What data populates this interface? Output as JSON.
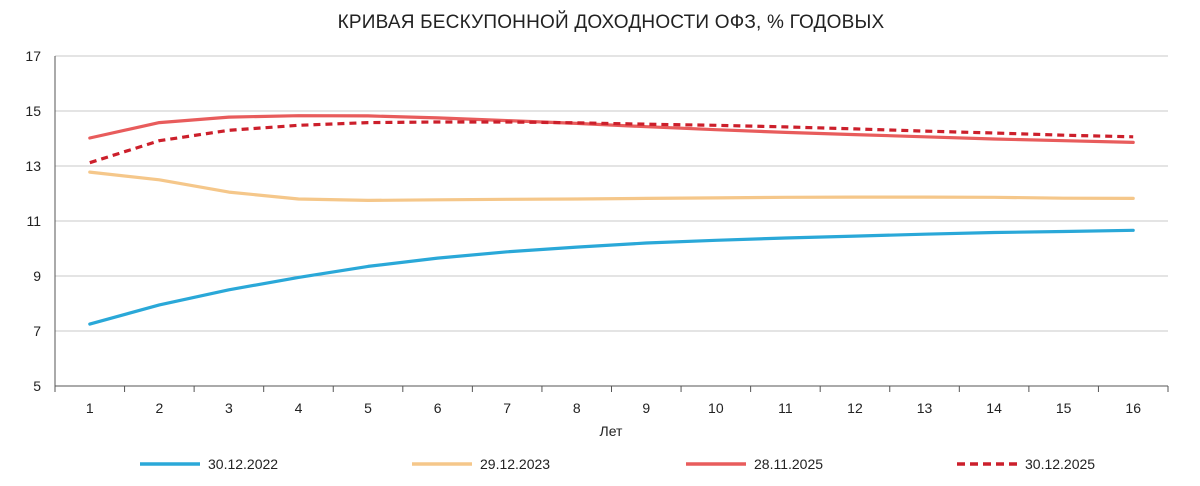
{
  "chart_data": {
    "type": "line",
    "title": "КРИВАЯ БЕСКУПОННОЙ ДОХОДНОСТИ ОФЗ, % ГОДОВЫХ",
    "xlabel": "Лет",
    "ylabel": "",
    "x": [
      1,
      2,
      3,
      4,
      5,
      6,
      7,
      8,
      9,
      10,
      11,
      12,
      13,
      14,
      15,
      16
    ],
    "ylim": [
      5,
      17
    ],
    "yticks": [
      5,
      7,
      9,
      11,
      13,
      15,
      17
    ],
    "grid": true,
    "legend_position": "bottom",
    "series": [
      {
        "name": "30.12.2022",
        "color": "#2aa8d8",
        "dash": "solid",
        "values": [
          7.25,
          7.95,
          8.5,
          8.95,
          9.35,
          9.65,
          9.88,
          10.05,
          10.2,
          10.3,
          10.38,
          10.45,
          10.52,
          10.58,
          10.62,
          10.66
        ]
      },
      {
        "name": "29.12.2023",
        "color": "#f5c78a",
        "dash": "solid",
        "values": [
          12.78,
          12.5,
          12.05,
          11.8,
          11.75,
          11.77,
          11.79,
          11.8,
          11.82,
          11.84,
          11.86,
          11.87,
          11.87,
          11.86,
          11.83,
          11.82
        ]
      },
      {
        "name": "28.11.2025",
        "color": "#e85c5c",
        "dash": "solid",
        "values": [
          14.02,
          14.58,
          14.78,
          14.83,
          14.82,
          14.75,
          14.65,
          14.55,
          14.43,
          14.32,
          14.22,
          14.14,
          14.06,
          13.98,
          13.92,
          13.86
        ]
      },
      {
        "name": "30.12.2025",
        "color": "#cc1f2b",
        "dash": "dashed",
        "values": [
          13.12,
          13.92,
          14.3,
          14.48,
          14.58,
          14.6,
          14.6,
          14.57,
          14.52,
          14.48,
          14.42,
          14.35,
          14.27,
          14.2,
          14.12,
          14.06
        ]
      }
    ]
  }
}
